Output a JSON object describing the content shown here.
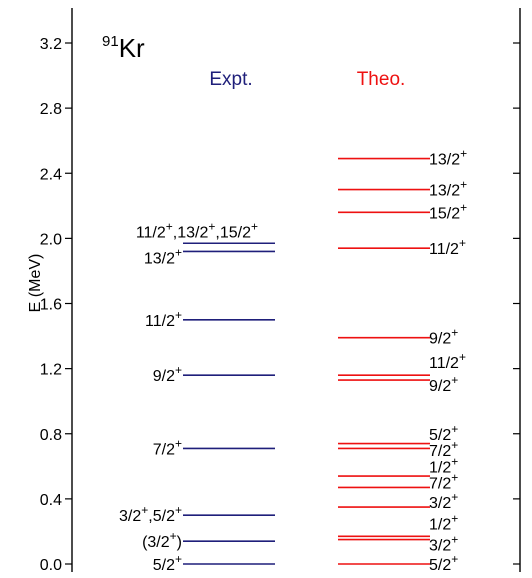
{
  "chart_data": {
    "type": "level_scheme",
    "nucleus": {
      "mass": "91",
      "symbol": "Kr"
    },
    "ylabel": "E (MeV)",
    "ylim": [
      -0.04,
      3.42
    ],
    "yticks": [
      0.0,
      0.4,
      0.8,
      1.2,
      1.6,
      2.0,
      2.4,
      2.8,
      3.2
    ],
    "ytick_labels": [
      "0.0",
      "0.4",
      "0.8",
      "1.2",
      "1.6",
      "2.0",
      "2.4",
      "2.8",
      "3.2"
    ],
    "colors": {
      "expt": "#1f1f7a",
      "theo": "#ee1111",
      "axis": "#000000"
    },
    "series": [
      {
        "name": "Expt.",
        "levels": [
          {
            "energy": 0.0,
            "label": "5/2",
            "sup": "+"
          },
          {
            "energy": 0.14,
            "label": "(3/2",
            "sup": "+",
            "tail": ")"
          },
          {
            "energy": 0.3,
            "label": "3/2",
            "sup": "+",
            "label2": ",5/2",
            "sup2": "+"
          },
          {
            "energy": 0.71,
            "label": "7/2",
            "sup": "+"
          },
          {
            "energy": 1.16,
            "label": "9/2",
            "sup": "+"
          },
          {
            "energy": 1.5,
            "label": "11/2",
            "sup": "+"
          },
          {
            "energy": 1.92,
            "label": "13/2",
            "sup": "+"
          },
          {
            "energy": 1.97,
            "label": "11/2",
            "sup": "+",
            "label2": ",13/2",
            "sup2": "+",
            "label3": ",15/2",
            "sup3": "+"
          }
        ]
      },
      {
        "name": "Theo.",
        "levels": [
          {
            "energy": 0.0,
            "label": "5/2",
            "sup": "+"
          },
          {
            "energy": 0.15
          },
          {
            "energy": 0.17
          },
          {
            "energy": 0.35
          },
          {
            "energy": 0.47
          },
          {
            "energy": 0.54
          },
          {
            "energy": 0.71
          },
          {
            "energy": 0.74
          },
          {
            "energy": 1.13
          },
          {
            "energy": 1.16
          },
          {
            "energy": 1.39
          },
          {
            "energy": 1.94
          },
          {
            "energy": 2.16
          },
          {
            "energy": 2.3
          },
          {
            "energy": 2.49
          }
        ],
        "labels": [
          {
            "energy": 0.0,
            "text": "5/2",
            "sup": "+"
          },
          {
            "energy": 0.12,
            "text": "3/2",
            "sup": "+"
          },
          {
            "energy": 0.25,
            "text": "1/2",
            "sup": "+"
          },
          {
            "energy": 0.38,
            "text": "3/2",
            "sup": "+"
          },
          {
            "energy": 0.5,
            "text": "7/2",
            "sup": "+"
          },
          {
            "energy": 0.6,
            "text": "1/2",
            "sup": "+"
          },
          {
            "energy": 0.7,
            "text": "7/2",
            "sup": "+"
          },
          {
            "energy": 0.8,
            "text": "5/2",
            "sup": "+"
          },
          {
            "energy": 1.1,
            "text": "9/2",
            "sup": "+"
          },
          {
            "energy": 1.24,
            "text": "11/2",
            "sup": "+"
          },
          {
            "energy": 1.39,
            "text": "9/2",
            "sup": "+"
          },
          {
            "energy": 1.94,
            "text": "11/2",
            "sup": "+"
          },
          {
            "energy": 2.16,
            "text": "15/2",
            "sup": "+"
          },
          {
            "energy": 2.3,
            "text": "13/2",
            "sup": "+"
          },
          {
            "energy": 2.49,
            "text": "13/2",
            "sup": "+"
          }
        ]
      }
    ]
  }
}
